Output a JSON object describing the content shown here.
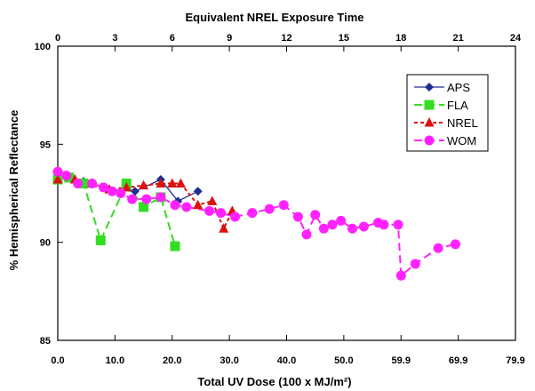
{
  "chart_data": {
    "type": "line",
    "title": "",
    "xlabel": "Total UV Dose  (100 x MJ/m²)",
    "ylabel": "% Hemispherical Reflectance",
    "x2label": "Equivalent NREL Exposure Time",
    "xlim": [
      0,
      80
    ],
    "ylim": [
      85,
      100
    ],
    "x_ticks": [
      0,
      10,
      20,
      30,
      40,
      50,
      60,
      70,
      80
    ],
    "x_tick_labels": [
      "0.0",
      "10.0",
      "20.0",
      "30.0",
      "40.0",
      "50.0",
      "59.9",
      "69.9",
      "79.9"
    ],
    "x2_ticks": [
      0,
      3,
      6,
      9,
      12,
      15,
      18,
      21,
      24
    ],
    "x2_tick_labels": [
      "0",
      "3",
      "6",
      "9",
      "12",
      "15",
      "18",
      "21",
      "24"
    ],
    "y_ticks": [
      85,
      90,
      95,
      100
    ],
    "y_tick_labels": [
      "85",
      "90",
      "95",
      "100"
    ],
    "grid": false,
    "legend_position": "top-right",
    "series": [
      {
        "name": "APS",
        "color": "#1f2f8f",
        "marker": "diamond",
        "line": "solid",
        "x": [
          0,
          4.5,
          9,
          13.5,
          18,
          21,
          24.5
        ],
        "y": [
          93.3,
          93.1,
          92.7,
          92.6,
          93.2,
          92.1,
          92.6
        ]
      },
      {
        "name": "FLA",
        "color": "#33dd22",
        "marker": "square",
        "line": "dash",
        "x": [
          0,
          2,
          4.5,
          7.5,
          12,
          15,
          18,
          20.5
        ],
        "y": [
          93.2,
          93.3,
          93.0,
          90.1,
          93.0,
          91.8,
          92.3,
          89.8
        ]
      },
      {
        "name": "NREL",
        "color": "#dd1111",
        "marker": "triangle",
        "line": "dot",
        "x": [
          0,
          3,
          6,
          9,
          12,
          15,
          18,
          20,
          21.5,
          24.5,
          27,
          29,
          30.5
        ],
        "y": [
          93.2,
          93.2,
          93.0,
          92.7,
          92.8,
          92.9,
          93.0,
          93.0,
          93.0,
          91.9,
          92.1,
          90.7,
          91.6
        ]
      },
      {
        "name": "WOM",
        "color": "#ff22ff",
        "marker": "circle",
        "line": "dash",
        "x": [
          0,
          1.5,
          3.5,
          6,
          8,
          9.5,
          11,
          13,
          15.5,
          18,
          20.5,
          22.5,
          26.5,
          28.5,
          31,
          34,
          37,
          39.5,
          42,
          43.5,
          45,
          46.5,
          48,
          49.5,
          51.5,
          53.5,
          56,
          57,
          59.5,
          60,
          62.5,
          66.5,
          69.5
        ],
        "y": [
          93.6,
          93.4,
          93.0,
          93.0,
          92.8,
          92.6,
          92.5,
          92.2,
          92.2,
          92.3,
          91.9,
          91.8,
          91.6,
          91.5,
          91.3,
          91.5,
          91.7,
          91.9,
          91.3,
          90.4,
          91.4,
          90.7,
          90.9,
          91.1,
          90.7,
          90.8,
          91.0,
          90.9,
          90.9,
          88.3,
          88.9,
          89.7,
          89.9
        ]
      }
    ]
  }
}
